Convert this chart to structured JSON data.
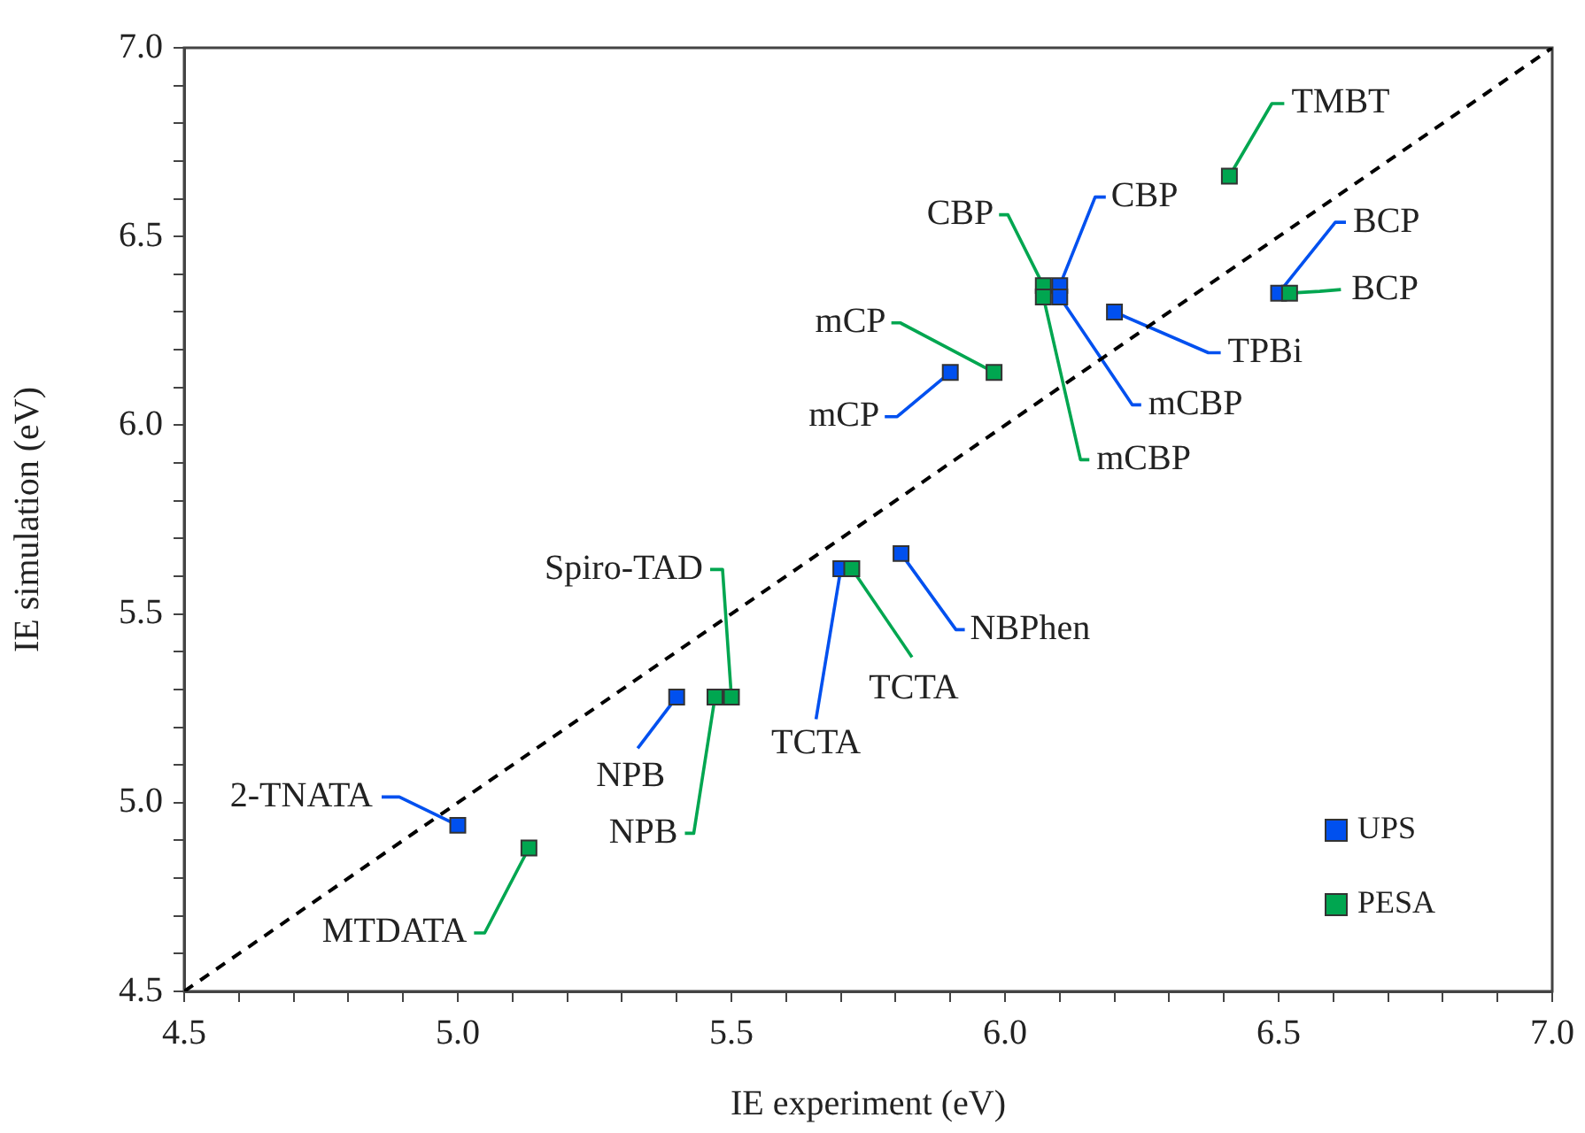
{
  "chart_data": {
    "type": "scatter",
    "xlabel": "IE experiment (eV)",
    "ylabel": "IE simulation (eV)",
    "xlim": [
      4.5,
      7.0
    ],
    "ylim": [
      4.5,
      7.0
    ],
    "xticks": [
      4.5,
      {
        "value": 4.6,
        "label": null
      },
      {
        "value": 4.7,
        "label": null
      },
      {
        "value": 4.8,
        "label": null
      },
      {
        "value": 4.9,
        "label": null
      },
      {
        "value": 5.0,
        "label": "5.0"
      },
      {
        "value": 5.1,
        "label": null
      },
      {
        "value": 5.2,
        "label": null
      },
      {
        "value": 5.3,
        "label": null
      },
      {
        "value": 5.4,
        "label": null
      },
      5.5,
      {
        "value": 5.6,
        "label": null
      },
      {
        "value": 5.7,
        "label": null
      },
      {
        "value": 5.8,
        "label": null
      },
      {
        "value": 5.9,
        "label": null
      },
      {
        "value": 6.0,
        "label": "6.0"
      },
      {
        "value": 6.1,
        "label": null
      },
      {
        "value": 6.2,
        "label": null
      },
      {
        "value": 6.3,
        "label": null
      },
      {
        "value": 6.4,
        "label": null
      },
      6.5,
      {
        "value": 6.6,
        "label": null
      },
      {
        "value": 6.7,
        "label": null
      },
      {
        "value": 6.8,
        "label": null
      },
      {
        "value": 6.9,
        "label": null
      },
      {
        "value": 7.0,
        "label": "7.0"
      }
    ],
    "yticks": [
      4.5,
      {
        "value": 4.6,
        "label": null
      },
      {
        "value": 4.7,
        "label": null
      },
      {
        "value": 4.8,
        "label": null
      },
      {
        "value": 4.9,
        "label": null
      },
      {
        "value": 5.0,
        "label": "5.0"
      },
      {
        "value": 5.1,
        "label": null
      },
      {
        "value": 5.2,
        "label": null
      },
      {
        "value": 5.3,
        "label": null
      },
      {
        "value": 5.4,
        "label": null
      },
      5.5,
      {
        "value": 5.6,
        "label": null
      },
      {
        "value": 5.7,
        "label": null
      },
      {
        "value": 5.8,
        "label": null
      },
      {
        "value": 5.9,
        "label": null
      },
      {
        "value": 6.0,
        "label": "6.0"
      },
      {
        "value": 6.1,
        "label": null
      },
      {
        "value": 6.2,
        "label": null
      },
      {
        "value": 6.3,
        "label": null
      },
      {
        "value": 6.4,
        "label": null
      },
      6.5,
      {
        "value": 6.6,
        "label": null
      },
      {
        "value": 6.7,
        "label": null
      },
      {
        "value": 6.8,
        "label": null
      },
      {
        "value": 6.9,
        "label": null
      },
      {
        "value": 7.0,
        "label": "7.0"
      }
    ],
    "grid": false,
    "legend": "bottom right",
    "marker": "square",
    "series": [
      {
        "type": "line",
        "color": "#000000",
        "line_style": "dashed",
        "marker": "none",
        "x": [
          4.5,
          7.0
        ],
        "values": [
          4.5,
          7.0
        ]
      },
      {
        "name": "UPS",
        "color": "#0050ef",
        "x": [
          5.0,
          5.4,
          5.7,
          5.81,
          5.9,
          6.1,
          6.1,
          6.2,
          6.5
        ],
        "values": [
          4.94,
          5.28,
          5.62,
          5.66,
          6.14,
          6.37,
          6.34,
          6.3,
          6.35
        ]
      },
      {
        "name": "PESA",
        "color": "#00a650",
        "x": [
          5.13,
          5.47,
          5.5,
          5.72,
          5.98,
          6.07,
          6.07,
          6.41,
          6.52
        ],
        "values": [
          4.88,
          5.28,
          5.28,
          5.62,
          6.14,
          6.37,
          6.34,
          6.66,
          6.35
        ]
      }
    ],
    "annotations": [
      {
        "text": "2-TNATA",
        "x": 5.0,
        "y": 4.94
      },
      {
        "text": "MTDATA",
        "x": 5.13,
        "y": 4.88
      },
      {
        "text": "NPB",
        "x": 5.4,
        "y": 5.28
      },
      {
        "text": "NPB",
        "x": 5.47,
        "y": 5.28
      },
      {
        "text": "Spiro-TAD",
        "x": 5.5,
        "y": 5.28
      },
      {
        "text": "TCTA",
        "x": 5.7,
        "y": 5.62
      },
      {
        "text": "TCTA",
        "x": 5.72,
        "y": 5.62
      },
      {
        "text": "NBPhen",
        "x": 5.81,
        "y": 5.66
      },
      {
        "text": "mCP",
        "x": 5.9,
        "y": 6.14
      },
      {
        "text": "mCP",
        "x": 5.98,
        "y": 6.14
      },
      {
        "text": "CBP",
        "x": 6.07,
        "y": 6.37
      },
      {
        "text": "mCBP",
        "x": 6.07,
        "y": 6.34
      },
      {
        "text": "CBP",
        "x": 6.1,
        "y": 6.37
      },
      {
        "text": "mCBP",
        "x": 6.1,
        "y": 6.34
      },
      {
        "text": "TPBi",
        "x": 6.2,
        "y": 6.3
      },
      {
        "text": "TMBT",
        "x": 6.41,
        "y": 6.66
      },
      {
        "text": "BCP",
        "x": 6.5,
        "y": 6.35
      },
      {
        "text": "BCP",
        "x": 6.52,
        "y": 6.35
      }
    ]
  }
}
